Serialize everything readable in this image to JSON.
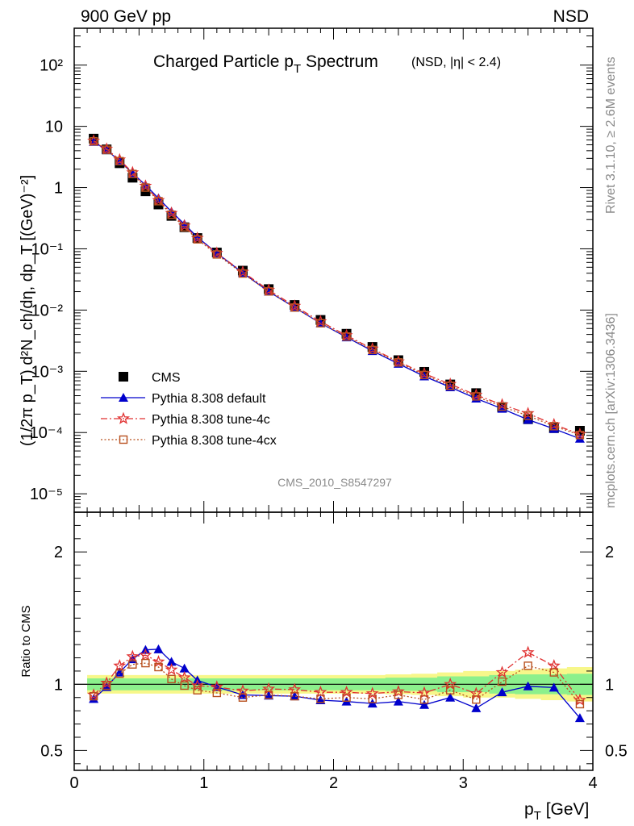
{
  "header": {
    "left": "900 GeV pp",
    "right": "NSD"
  },
  "side_text": {
    "rivet": "Rivet 3.1.10, ≥ 2.6M events",
    "mcplots": "mcplots.cern.ch [arXiv:1306.3436]"
  },
  "analysis_id": "CMS_2010_S8547297",
  "chart_data": [
    {
      "type": "scatter",
      "panel": "main",
      "title_main": "Charged Particle p",
      "title_sub": "T",
      "title_tail": " Spectrum",
      "title_cut": "(NSD, |η| < 2.4)",
      "ylabel": "(1/2π p_T) d²N_ch/dη, dp_T [(GeV)⁻²]",
      "yscale": "log",
      "xlim": [
        0,
        4
      ],
      "ylim": [
        5e-06,
        400
      ],
      "yticks": [
        "10⁻⁵",
        "10⁻⁴",
        "10⁻³",
        "10⁻²",
        "10⁻¹",
        "1",
        "10",
        "10²"
      ],
      "legend_position": "bottom-left",
      "x": [
        0.15,
        0.25,
        0.35,
        0.45,
        0.55,
        0.65,
        0.75,
        0.85,
        0.95,
        1.1,
        1.3,
        1.5,
        1.7,
        1.9,
        2.1,
        2.3,
        2.5,
        2.7,
        2.9,
        3.1,
        3.3,
        3.5,
        3.7,
        3.9
      ],
      "series": [
        {
          "name": "CMS",
          "color": "#000000",
          "marker": "square",
          "values": [
            6.3,
            4.2,
            2.5,
            1.45,
            0.87,
            0.53,
            0.345,
            0.225,
            0.15,
            0.087,
            0.044,
            0.022,
            0.0121,
            0.0069,
            0.0041,
            0.0025,
            0.00152,
            0.00098,
            0.00061,
            0.00044,
            0.00026,
            0.000165,
            0.000118,
            0.000107
          ]
        },
        {
          "name": "Pythia 8.308 default",
          "color": "#0000cc",
          "marker": "triangle",
          "line": "solid",
          "values": [
            5.6,
            4.1,
            2.72,
            1.72,
            1.1,
            0.67,
            0.405,
            0.253,
            0.155,
            0.085,
            0.0405,
            0.0201,
            0.011,
            0.0061,
            0.0036,
            0.00215,
            0.00133,
            0.00083,
            0.00055,
            0.00036,
            0.000245,
            0.000162,
            0.000115,
            7.95e-05
          ]
        },
        {
          "name": "Pythia 8.308 tune-4c",
          "color": "#e03030",
          "marker": "star",
          "line": "dashdot",
          "values": [
            5.8,
            4.25,
            2.85,
            1.76,
            1.06,
            0.62,
            0.382,
            0.237,
            0.149,
            0.085,
            0.0418,
            0.0212,
            0.0116,
            0.0065,
            0.00385,
            0.00233,
            0.00144,
            0.00092,
            0.000615,
            0.00041,
            0.000285,
            0.000205,
            0.000135,
            9.4e-05
          ]
        },
        {
          "name": "Pythia 8.308 tune-4cx",
          "color": "#b8501f",
          "marker": "open-square",
          "line": "dotted",
          "values": [
            5.7,
            4.15,
            2.7,
            1.67,
            1.0,
            0.6,
            0.36,
            0.225,
            0.143,
            0.081,
            0.0395,
            0.0202,
            0.011,
            0.0061,
            0.0037,
            0.00223,
            0.0014,
            0.00087,
            0.00058,
            0.00039,
            0.000265,
            0.000188,
            0.000127,
            9.1e-05
          ]
        }
      ]
    },
    {
      "type": "scatter",
      "panel": "ratio",
      "ylabel": "Ratio to CMS",
      "xlabel_main": "p",
      "xlabel_sub": "T",
      "xlabel_tail": " [GeV]",
      "xlim": [
        0,
        4
      ],
      "ylim": [
        0.35,
        2.3
      ],
      "xticks": [
        "0",
        "1",
        "2",
        "3",
        "4"
      ],
      "yticks": [
        "0.5",
        "1",
        "2"
      ],
      "band_inner_color": "#8cf08c",
      "band_outer_color": "#f7f78a",
      "x": [
        0.15,
        0.25,
        0.35,
        0.45,
        0.55,
        0.65,
        0.75,
        0.85,
        0.95,
        1.1,
        1.3,
        1.5,
        1.7,
        1.9,
        2.1,
        2.3,
        2.5,
        2.7,
        2.9,
        3.1,
        3.3,
        3.5,
        3.7,
        3.9
      ],
      "band_inner": [
        0.045,
        0.045,
        0.045,
        0.045,
        0.045,
        0.045,
        0.045,
        0.045,
        0.045,
        0.045,
        0.045,
        0.045,
        0.045,
        0.045,
        0.045,
        0.045,
        0.05,
        0.05,
        0.06,
        0.06,
        0.07,
        0.075,
        0.075,
        0.08
      ],
      "band_outer": [
        0.07,
        0.07,
        0.07,
        0.07,
        0.07,
        0.07,
        0.07,
        0.07,
        0.07,
        0.07,
        0.07,
        0.07,
        0.07,
        0.07,
        0.07,
        0.07,
        0.075,
        0.08,
        0.09,
        0.1,
        0.1,
        0.11,
        0.12,
        0.13
      ],
      "series": [
        {
          "name": "Pythia 8.308 default",
          "color": "#0000cc",
          "marker": "triangle",
          "values": [
            0.89,
            0.98,
            1.09,
            1.19,
            1.26,
            1.265,
            1.17,
            1.12,
            1.03,
            0.98,
            0.92,
            0.915,
            0.91,
            0.88,
            0.87,
            0.855,
            0.87,
            0.845,
            0.9,
            0.82,
            0.94,
            0.985,
            0.975,
            0.745
          ]
        },
        {
          "name": "Pythia 8.308 tune-4c",
          "color": "#e03030",
          "marker": "star",
          "values": [
            0.92,
            1.01,
            1.14,
            1.21,
            1.22,
            1.17,
            1.11,
            1.05,
            0.99,
            0.98,
            0.95,
            0.965,
            0.96,
            0.94,
            0.94,
            0.93,
            0.945,
            0.935,
            1.0,
            0.93,
            1.09,
            1.24,
            1.14,
            0.88
          ]
        },
        {
          "name": "Pythia 8.308 tune-4cx",
          "color": "#b8501f",
          "marker": "open-square",
          "values": [
            0.91,
            0.99,
            1.08,
            1.15,
            1.16,
            1.13,
            1.04,
            0.99,
            0.955,
            0.935,
            0.9,
            0.92,
            0.91,
            0.89,
            0.9,
            0.89,
            0.92,
            0.885,
            0.955,
            0.885,
            1.02,
            1.14,
            1.09,
            0.85
          ]
        }
      ]
    }
  ]
}
